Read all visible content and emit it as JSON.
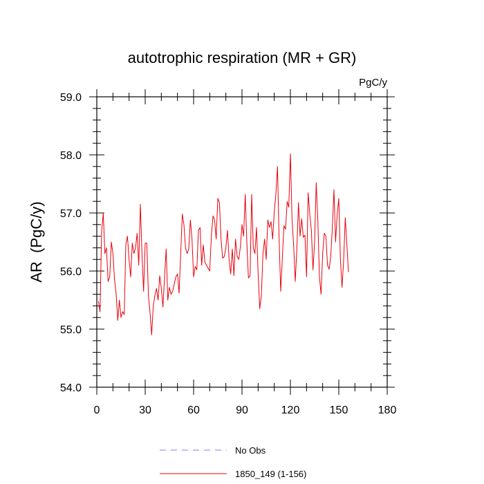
{
  "chart_data": {
    "type": "line",
    "title": "autotrophic respiration (MR + GR)",
    "units": "PgC/y",
    "ylabel": "AR  (PgC/y)",
    "xlabel": "",
    "xlim": [
      0,
      180
    ],
    "ylim": [
      54.0,
      59.0
    ],
    "xticks": [
      0,
      30,
      60,
      90,
      120,
      150,
      180
    ],
    "yticks": [
      54.0,
      55.0,
      56.0,
      57.0,
      58.0,
      59.0
    ],
    "xtick_labels": [
      "0",
      "30",
      "60",
      "90",
      "120",
      "150",
      "180"
    ],
    "ytick_labels": [
      "54.0",
      "55.0",
      "56.0",
      "57.0",
      "58.0",
      "59.0"
    ],
    "legend_position": "bottom-center",
    "series": [
      {
        "name": "No Obs",
        "color": "#7b7bff",
        "style": "dashed",
        "values": []
      },
      {
        "name": "1850_149 (1-156)",
        "color": "#e8000b",
        "style": "solid",
        "x": [
          1,
          2,
          3,
          4,
          5,
          6,
          7,
          8,
          9,
          10,
          11,
          12,
          13,
          14,
          15,
          16,
          17,
          18,
          19,
          20,
          21,
          22,
          23,
          24,
          25,
          26,
          27,
          28,
          29,
          30,
          31,
          32,
          33,
          34,
          35,
          36,
          37,
          38,
          39,
          40,
          41,
          42,
          43,
          44,
          45,
          46,
          47,
          48,
          49,
          50,
          51,
          52,
          53,
          54,
          55,
          56,
          57,
          58,
          59,
          60,
          61,
          62,
          63,
          64,
          65,
          66,
          67,
          68,
          69,
          70,
          71,
          72,
          73,
          74,
          75,
          76,
          77,
          78,
          79,
          80,
          81,
          82,
          83,
          84,
          85,
          86,
          87,
          88,
          89,
          90,
          91,
          92,
          93,
          94,
          95,
          96,
          97,
          98,
          99,
          100,
          101,
          102,
          103,
          104,
          105,
          106,
          107,
          108,
          109,
          110,
          111,
          112,
          113,
          114,
          115,
          116,
          117,
          118,
          119,
          120,
          121,
          122,
          123,
          124,
          125,
          126,
          127,
          128,
          129,
          130,
          131,
          132,
          133,
          134,
          135,
          136,
          137,
          138,
          139,
          140,
          141,
          142,
          143,
          144,
          145,
          146,
          147,
          148,
          149,
          150,
          151,
          152,
          153,
          154,
          155,
          156
        ],
        "values": [
          55.48,
          55.3,
          56.68,
          57.0,
          56.3,
          56.4,
          55.82,
          55.9,
          56.5,
          56.3,
          55.85,
          55.6,
          55.15,
          55.5,
          55.2,
          55.3,
          55.25,
          56.45,
          56.6,
          56.2,
          55.9,
          56.48,
          56.3,
          56.4,
          56.65,
          56.1,
          57.15,
          56.3,
          55.65,
          56.48,
          56.48,
          55.58,
          55.28,
          54.9,
          55.4,
          55.58,
          55.7,
          55.5,
          55.92,
          55.7,
          55.38,
          55.9,
          56.38,
          55.5,
          55.72,
          55.6,
          55.65,
          55.78,
          55.9,
          55.95,
          55.62,
          56.3,
          56.98,
          56.8,
          56.4,
          56.3,
          56.38,
          56.88,
          56.55,
          55.9,
          56.08,
          56.02,
          56.7,
          56.75,
          56.1,
          56.45,
          56.15,
          56.1,
          56.05,
          56.0,
          56.6,
          56.95,
          56.88,
          56.55,
          57.25,
          57.18,
          56.55,
          56.22,
          56.25,
          56.4,
          56.7,
          56.2,
          55.95,
          56.38,
          55.92,
          56.55,
          56.25,
          56.2,
          56.42,
          56.8,
          56.6,
          57.32,
          56.48,
          55.88,
          55.92,
          57.32,
          56.4,
          56.3,
          56.75,
          55.95,
          55.35,
          55.58,
          56.3,
          56.55,
          56.2,
          56.88,
          56.75,
          56.85,
          56.55,
          57.02,
          57.32,
          57.8,
          56.55,
          55.65,
          56.22,
          56.78,
          56.72,
          57.2,
          57.1,
          58.02,
          56.9,
          56.45,
          55.82,
          56.38,
          57.18,
          56.6,
          56.9,
          56.58,
          56.62,
          55.9,
          57.35,
          56.98,
          56.7,
          56.02,
          56.5,
          57.52,
          56.88,
          55.9,
          55.6,
          56.3,
          56.65,
          56.6,
          56.1,
          56.03,
          56.25,
          56.75,
          57.4,
          56.5,
          56.98,
          57.25,
          56.2,
          55.72,
          56.18,
          56.92,
          56.45,
          55.98
        ]
      }
    ]
  }
}
